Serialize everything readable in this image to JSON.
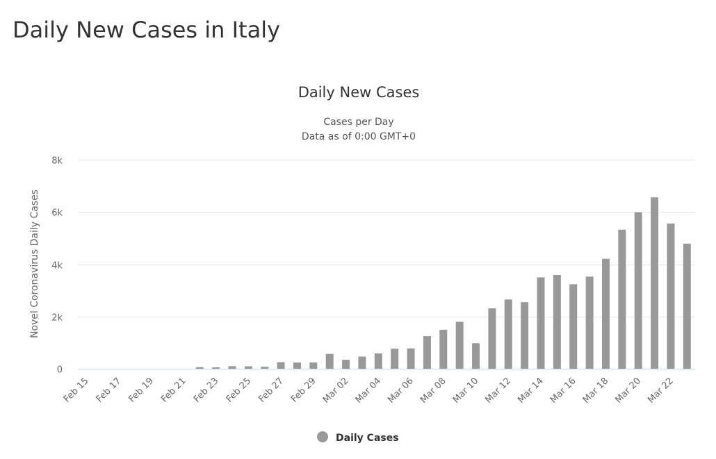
{
  "page": {
    "title": "Daily New Cases in Italy"
  },
  "chart_data": {
    "type": "bar",
    "title": "Daily New Cases",
    "subtitle_lines": [
      "Cases per Day",
      "Data as of 0:00 GMT+0"
    ],
    "xlabel": "",
    "ylabel": "Novel Coronavirus Daily Cases",
    "ylim": [
      0,
      8000
    ],
    "y_ticks": [
      0,
      2000,
      4000,
      6000,
      8000
    ],
    "y_tick_labels": [
      "0",
      "2k",
      "4k",
      "6k",
      "8k"
    ],
    "grid": true,
    "legend_position": "bottom-center",
    "bar_color": "#999999",
    "categories": [
      "Feb 15",
      "Feb 16",
      "Feb 17",
      "Feb 18",
      "Feb 19",
      "Feb 20",
      "Feb 21",
      "Feb 22",
      "Feb 23",
      "Feb 24",
      "Feb 25",
      "Feb 26",
      "Feb 27",
      "Feb 28",
      "Feb 29",
      "Mar 01",
      "Mar 02",
      "Mar 03",
      "Mar 04",
      "Mar 05",
      "Mar 06",
      "Mar 07",
      "Mar 08",
      "Mar 09",
      "Mar 10",
      "Mar 11",
      "Mar 12",
      "Mar 13",
      "Mar 14",
      "Mar 15",
      "Mar 16",
      "Mar 17",
      "Mar 18",
      "Mar 19",
      "Mar 20",
      "Mar 21",
      "Mar 22",
      "Mar 23"
    ],
    "x_tick_labels": [
      "Feb 15",
      "Feb 17",
      "Feb 19",
      "Feb 21",
      "Feb 23",
      "Feb 25",
      "Feb 27",
      "Feb 29",
      "Mar 02",
      "Mar 04",
      "Mar 06",
      "Mar 08",
      "Mar 10",
      "Mar 12",
      "Mar 14",
      "Mar 16",
      "Mar 18",
      "Mar 20",
      "Mar 22"
    ],
    "series": [
      {
        "name": "Daily Cases",
        "values": [
          0,
          0,
          0,
          0,
          0,
          0,
          0,
          62,
          53,
          97,
          93,
          78,
          250,
          238,
          240,
          566,
          342,
          466,
          587,
          769,
          778,
          1247,
          1492,
          1797,
          977,
          2313,
          2651,
          2547,
          3497,
          3590,
          3233,
          3526,
          4207,
          5322,
          5986,
          6557,
          5560,
          4789
        ]
      }
    ]
  }
}
